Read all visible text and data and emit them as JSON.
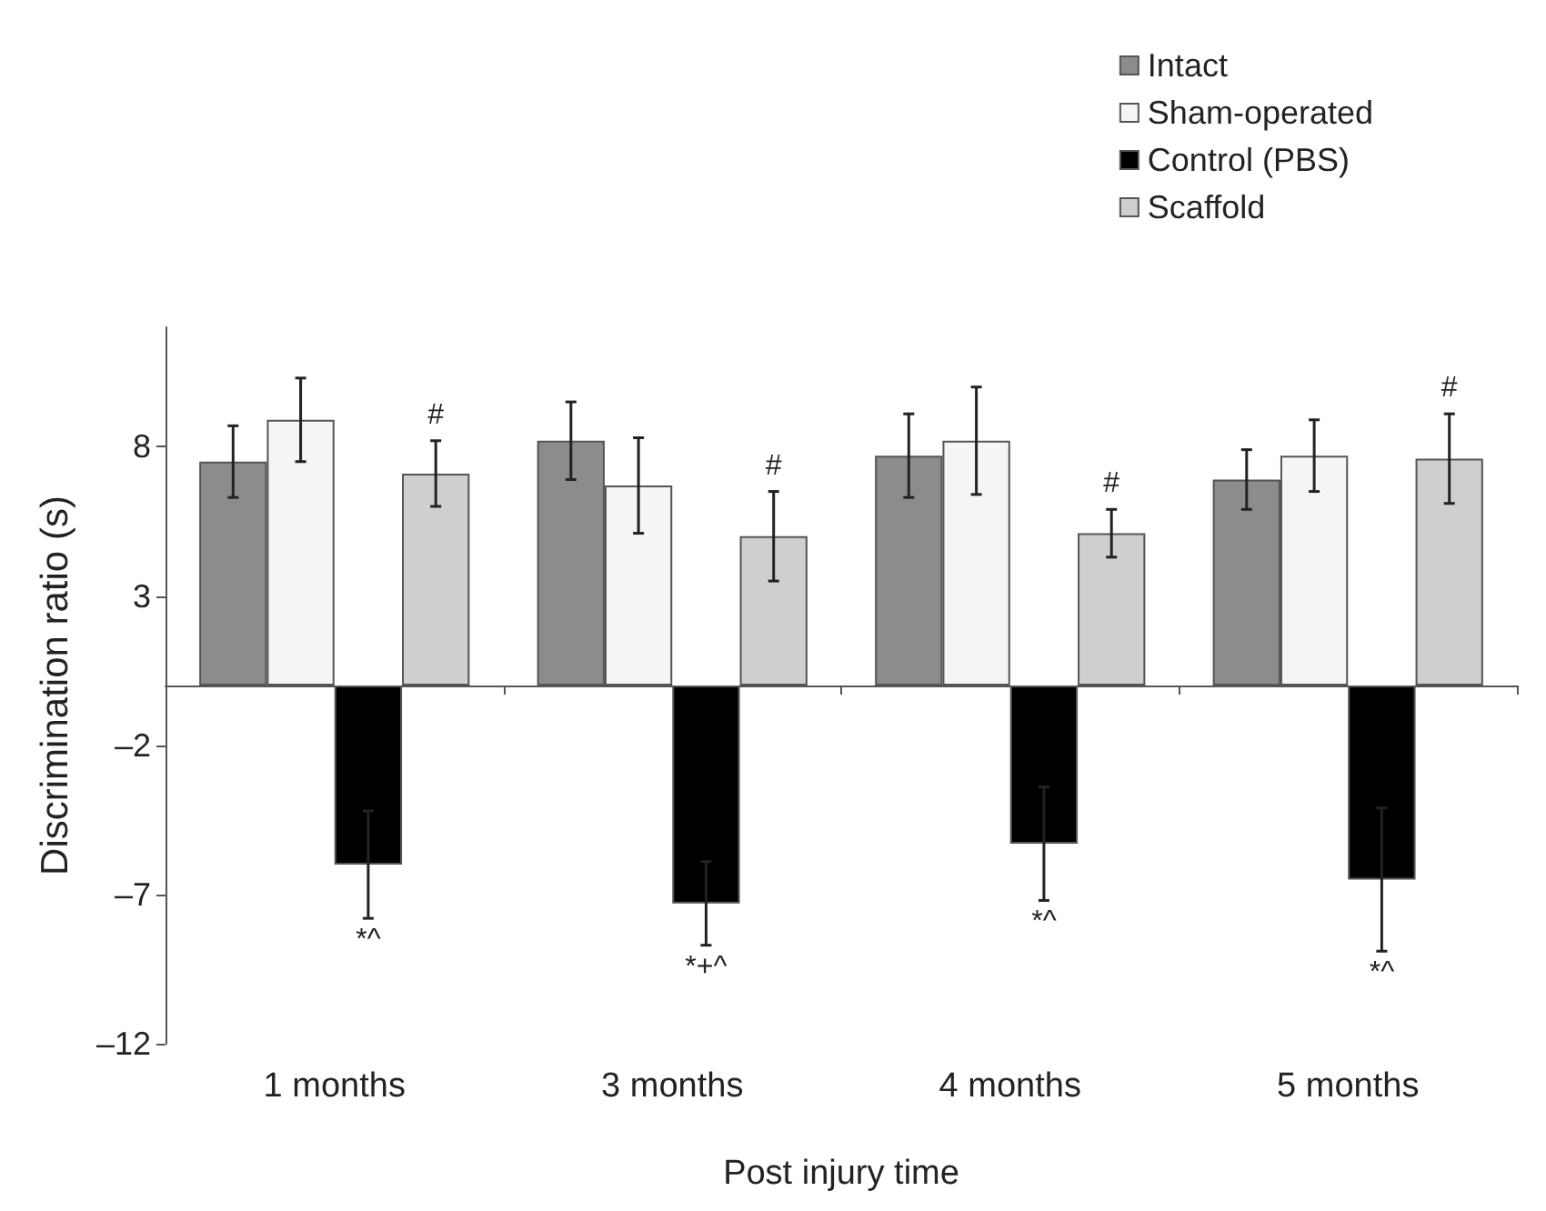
{
  "chart_data": {
    "type": "bar",
    "xlabel": "Post injury time",
    "ylabel": "Discrimination ratio (s)",
    "categories": [
      "1 months",
      "3 months",
      "4 months",
      "5 months"
    ],
    "series": [
      {
        "name": "Intact",
        "color": "#8c8c8c",
        "values": [
          7.5,
          8.2,
          7.7,
          6.9
        ],
        "errors": [
          1.2,
          1.3,
          1.4,
          1.0
        ]
      },
      {
        "name": "Sham-operated",
        "color": "#f4f6f5",
        "values": [
          8.9,
          6.7,
          8.2,
          7.7
        ],
        "errors": [
          1.4,
          1.6,
          1.8,
          1.2
        ]
      },
      {
        "name": "Control (PBS)",
        "color": "#000000",
        "values": [
          -6.0,
          -7.3,
          -5.3,
          -6.5
        ],
        "errors": [
          1.8,
          1.4,
          1.9,
          2.4
        ],
        "value_labels": [
          "*^",
          "*+^",
          "*^",
          "*^"
        ]
      },
      {
        "name": "Scaffold",
        "color": "#cfcfcf",
        "values": [
          7.1,
          5.0,
          5.1,
          7.6
        ],
        "errors": [
          1.1,
          1.5,
          0.8,
          1.5
        ],
        "value_labels": [
          "#",
          "#",
          "#",
          "#"
        ]
      }
    ],
    "ylim": [
      -12,
      12
    ],
    "yticks": [
      {
        "value": -12,
        "label": "–12"
      },
      {
        "value": -7,
        "label": "–7"
      },
      {
        "value": -2,
        "label": "–2"
      },
      3,
      8
    ],
    "grid": false,
    "legend": "top right"
  }
}
